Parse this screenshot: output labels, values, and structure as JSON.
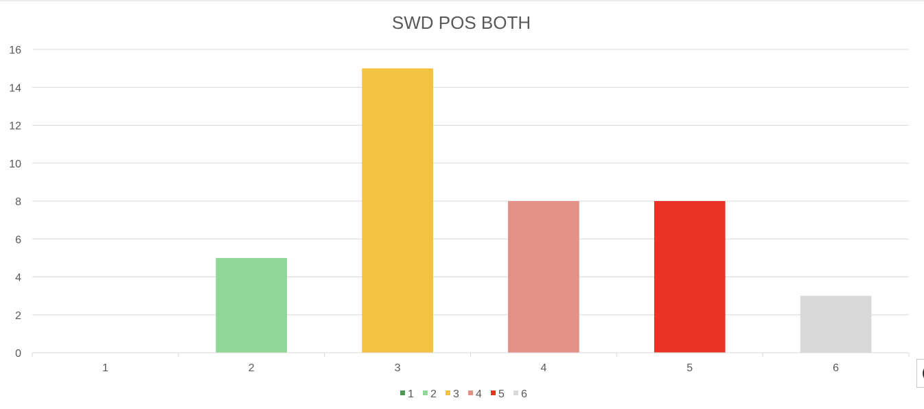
{
  "chart_data": {
    "type": "bar",
    "title": "SWD POS BOTH",
    "xlabel": "",
    "ylabel": "",
    "categories": [
      "1",
      "2",
      "3",
      "4",
      "5",
      "6"
    ],
    "values": [
      0,
      5,
      15,
      8,
      8,
      3
    ],
    "bar_colors": [
      "#4e9a55",
      "#92d598",
      "#f4c242",
      "#e39186",
      "#e93324",
      "#d9d9d9"
    ],
    "ylim": [
      0,
      16
    ],
    "yticks": [
      0,
      2,
      4,
      6,
      8,
      10,
      12,
      14,
      16
    ],
    "grid": true,
    "legend": {
      "position": "bottom",
      "entries": [
        "1",
        "2",
        "3",
        "4",
        "5",
        "6"
      ]
    }
  }
}
